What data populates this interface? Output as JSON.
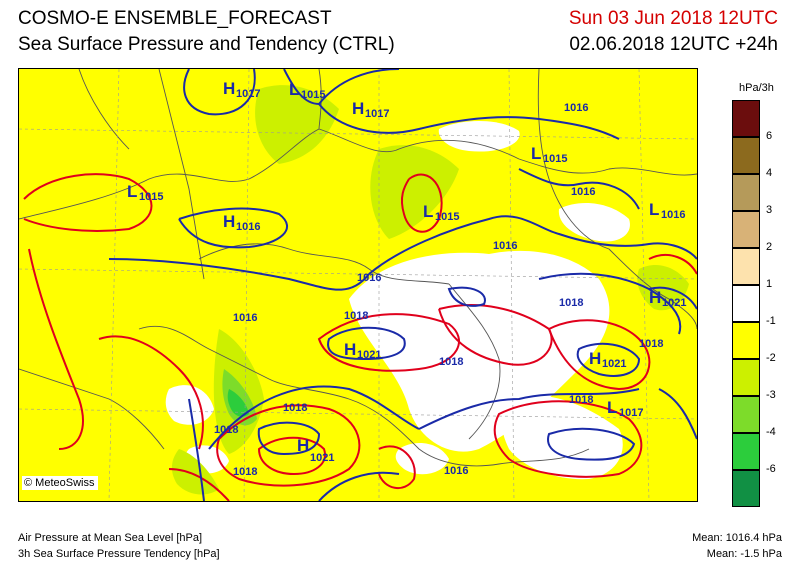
{
  "header": {
    "title_line1": "COSMO-E ENSEMBLE_FORECAST",
    "title_line2": "Sea Surface Pressure and Tendency (CTRL)",
    "valid_time": "Sun 03 Jun 2018 12UTC",
    "run_time": "02.06.2018 12UTC +24h"
  },
  "map": {
    "copyright": "© MeteoSwiss",
    "pressure_centers": [
      {
        "type": "H",
        "value": "1017"
      },
      {
        "type": "L",
        "value": "1015"
      },
      {
        "type": "H",
        "value": "1017"
      },
      {
        "type": "L",
        "value": "1015"
      },
      {
        "type": "L",
        "value": "1015"
      },
      {
        "type": "H",
        "value": "1016"
      },
      {
        "type": "L",
        "value": "1015"
      },
      {
        "type": "L",
        "value": "1016"
      },
      {
        "type": "H",
        "value": "1021"
      },
      {
        "type": "H",
        "value": "1021"
      },
      {
        "type": "H",
        "value": "1021"
      },
      {
        "type": "L",
        "value": "1017"
      },
      {
        "type": "H",
        "value": "1021"
      }
    ],
    "isobar_labels": [
      "1016",
      "1016",
      "1016",
      "1016",
      "1016",
      "1018",
      "1018",
      "1018",
      "1018",
      "1018",
      "1018",
      "1018",
      "1018",
      "1016"
    ]
  },
  "legend": {
    "unit": "hPa/3h",
    "entries": [
      {
        "label": "6",
        "color": "#6b0d0d"
      },
      {
        "label": "4",
        "color": "#8c6a1e"
      },
      {
        "label": "3",
        "color": "#b59a5a"
      },
      {
        "label": "2",
        "color": "#d8b277"
      },
      {
        "label": "1",
        "color": "#fde2ad"
      },
      {
        "label": "-1",
        "color": "#ffffff"
      },
      {
        "label": "-2",
        "color": "#ffff00"
      },
      {
        "label": "-3",
        "color": "#ccf000"
      },
      {
        "label": "-4",
        "color": "#7ddc2a"
      },
      {
        "label": "-6",
        "color": "#2ccd3c"
      },
      {
        "label": "",
        "color": "#119044"
      }
    ]
  },
  "footer": {
    "left_line1": "Air Pressure at Mean Sea Level [hPa]",
    "left_line2": "3h Sea Surface Pressure Tendency [hPa]",
    "right_line1": "Mean: 1016.4 hPa",
    "right_line2": "Mean:   -1.5 hPa"
  }
}
